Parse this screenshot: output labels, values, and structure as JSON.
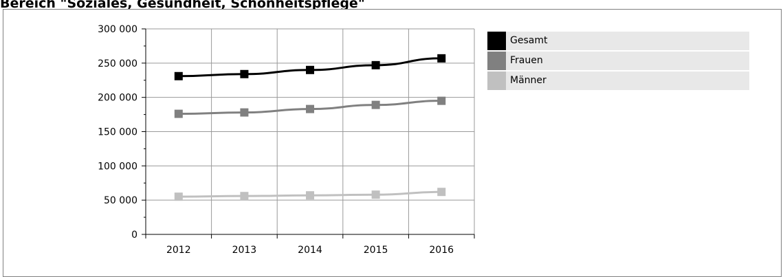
{
  "page": {
    "title": "Bereich \"Soziales, Gesundheit, Schönheitspflege\""
  },
  "chart_data": {
    "type": "line",
    "x": [
      "2012",
      "2013",
      "2014",
      "2015",
      "2016"
    ],
    "series": [
      {
        "name": "Gesamt",
        "color": "#000000",
        "values": [
          231000,
          234000,
          240000,
          247000,
          257000
        ]
      },
      {
        "name": "Frauen",
        "color": "#808080",
        "values": [
          176000,
          178000,
          183000,
          189000,
          195000
        ]
      },
      {
        "name": "Männer",
        "color": "#c0c0c0",
        "values": [
          55000,
          56000,
          57000,
          58000,
          62000
        ]
      }
    ],
    "yticks": [
      0,
      50000,
      100000,
      150000,
      200000,
      250000,
      300000
    ],
    "ytick_labels": [
      "0",
      "50 000",
      "100 000",
      "150 000",
      "200 000",
      "250 000",
      "300 000"
    ],
    "ylim": [
      0,
      300000
    ],
    "grid": true,
    "legend_position": "right"
  }
}
